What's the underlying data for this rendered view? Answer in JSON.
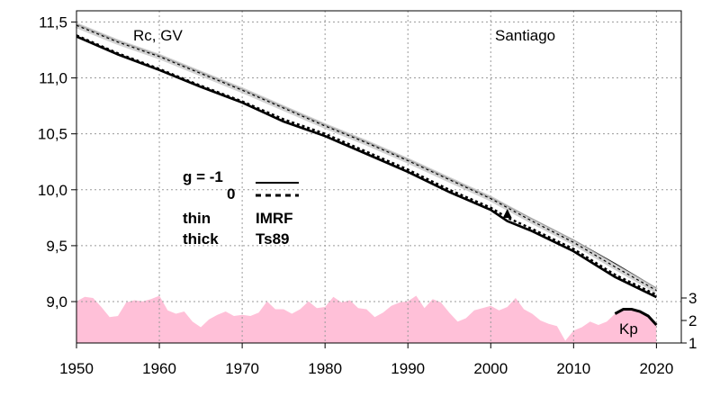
{
  "chart_data": {
    "type": "line",
    "annotations": {
      "top_left": "Rc, GV",
      "top_right": "Santiago",
      "kp_label": "Kp"
    },
    "legend": {
      "g_row1": "g  = -1",
      "g_row2": "0",
      "thin": "thin",
      "thick": "thick",
      "imrf": "IMRF",
      "ts89": "Ts89"
    },
    "x_ticks": [
      "1950",
      "1960",
      "1970",
      "1980",
      "1990",
      "2000",
      "2010",
      "2020"
    ],
    "y_ticks": [
      "9,0",
      "9,5",
      "10,0",
      "10,5",
      "11,0",
      "11,5"
    ],
    "kp_ticks": [
      "1",
      "2",
      "3"
    ],
    "xlim": [
      1950,
      2023
    ],
    "ylim": [
      8.63,
      11.6
    ],
    "kp_lim": [
      1,
      3.2
    ],
    "series": [
      {
        "style": "thin-solid",
        "x": [
          1950,
          1955,
          1960,
          1965,
          1970,
          1975,
          1980,
          1985,
          1990,
          1995,
          2000,
          2005,
          2010,
          2015,
          2020
        ],
        "values": [
          11.48,
          11.33,
          11.2,
          11.05,
          10.9,
          10.74,
          10.58,
          10.43,
          10.27,
          10.1,
          9.93,
          9.74,
          9.55,
          9.34,
          9.12
        ]
      },
      {
        "style": "thin-dashed",
        "x": [
          1950,
          1955,
          1960,
          1965,
          1970,
          1975,
          1980,
          1985,
          1990,
          1995,
          2000,
          2005,
          2010,
          2015,
          2020
        ],
        "values": [
          11.47,
          11.32,
          11.19,
          11.04,
          10.89,
          10.73,
          10.57,
          10.42,
          10.26,
          10.09,
          9.92,
          9.72,
          9.53,
          9.31,
          9.1
        ]
      },
      {
        "style": "thick-dashed",
        "x": [
          1950,
          1955,
          1960,
          1965,
          1970,
          1975,
          1980,
          1985,
          1990,
          1995,
          2000,
          2002,
          2005,
          2010,
          2015,
          2020
        ],
        "values": [
          11.38,
          11.22,
          11.08,
          10.93,
          10.79,
          10.63,
          10.5,
          10.34,
          10.18,
          10.0,
          9.84,
          9.75,
          9.65,
          9.47,
          9.24,
          9.06
        ]
      },
      {
        "style": "thick-solid",
        "x": [
          1950,
          1955,
          1960,
          1965,
          1970,
          1975,
          1980,
          1985,
          1990,
          1995,
          2000,
          2002,
          2005,
          2010,
          2015,
          2020
        ],
        "values": [
          11.37,
          11.21,
          11.07,
          10.92,
          10.78,
          10.61,
          10.48,
          10.32,
          10.16,
          9.98,
          9.82,
          9.72,
          9.63,
          9.45,
          9.22,
          9.04
        ]
      }
    ],
    "kp_series": {
      "x": [
        1950,
        1951,
        1952,
        1953,
        1954,
        1955,
        1956,
        1957,
        1958,
        1959,
        1960,
        1961,
        1962,
        1963,
        1964,
        1965,
        1966,
        1967,
        1968,
        1969,
        1970,
        1971,
        1972,
        1973,
        1974,
        1975,
        1976,
        1977,
        1978,
        1979,
        1980,
        1981,
        1982,
        1983,
        1984,
        1985,
        1986,
        1987,
        1988,
        1989,
        1990,
        1991,
        1992,
        1993,
        1994,
        1995,
        1996,
        1997,
        1998,
        1999,
        2000,
        2001,
        2002,
        2003,
        2004,
        2005,
        2006,
        2007,
        2008,
        2009,
        2010,
        2011,
        2012,
        2013,
        2014,
        2015,
        2016,
        2017,
        2018,
        2019,
        2020
      ],
      "values": [
        2.85,
        3.05,
        3.0,
        2.6,
        2.15,
        2.2,
        2.8,
        2.9,
        2.85,
        2.95,
        3.1,
        2.45,
        2.3,
        2.4,
        1.95,
        1.7,
        2.05,
        2.25,
        2.4,
        2.2,
        2.25,
        2.2,
        2.35,
        2.85,
        2.5,
        2.5,
        2.3,
        2.5,
        2.85,
        2.55,
        2.6,
        3.05,
        2.8,
        2.9,
        2.55,
        2.5,
        2.15,
        2.35,
        2.65,
        2.8,
        2.85,
        3.1,
        2.55,
        2.95,
        2.8,
        2.35,
        1.95,
        2.1,
        2.45,
        2.55,
        2.65,
        2.45,
        2.6,
        3.0,
        2.5,
        2.3,
        2.0,
        1.85,
        1.75,
        1.1,
        1.55,
        1.7,
        1.95,
        1.8,
        1.95,
        2.3,
        2.5,
        2.5,
        2.4,
        2.2,
        1.8
      ]
    },
    "triangle_marker": {
      "x": 2002,
      "y": 9.78
    },
    "grid": true
  }
}
